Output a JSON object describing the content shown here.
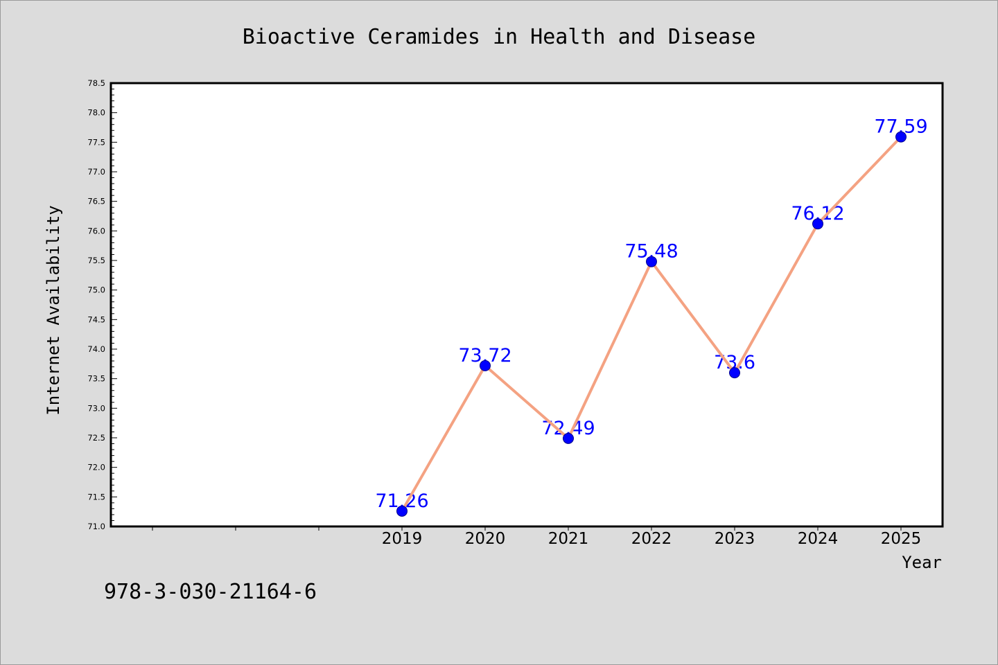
{
  "chart_data": {
    "type": "line",
    "title": "Bioactive Ceramides in Health and Disease",
    "xlabel": "Year",
    "ylabel": "Internet Availability",
    "categories": [
      "2019",
      "2020",
      "2021",
      "2022",
      "2023",
      "2024",
      "2025"
    ],
    "x": [
      2019,
      2020,
      2021,
      2022,
      2023,
      2024,
      2025
    ],
    "values": [
      71.26,
      73.72,
      72.49,
      75.48,
      73.6,
      76.12,
      77.59
    ],
    "data_labels": [
      "71.26",
      "73.72",
      "72.49",
      "75.48",
      "73.6",
      "76.12",
      "77.59"
    ],
    "xlim": [
      2015.5,
      2025.5
    ],
    "ylim": [
      71.0,
      78.5
    ],
    "y_tick_labels": [
      "71.0",
      "71.5",
      "72.0",
      "72.5",
      "73.0",
      "73.5",
      "74.0",
      "74.5",
      "75.0",
      "75.5",
      "76.0",
      "76.5",
      "77.0",
      "77.5",
      "78.0",
      "78.5"
    ],
    "grid": false,
    "colors": {
      "figure_background": "#dcdcdc",
      "plot_background": "#ffffff",
      "line": "#f4a282",
      "marker": "#0000ff",
      "marker_edge": "#00008b",
      "data_label": "#0000ff"
    }
  },
  "footer_text": "978-3-030-21164-6"
}
